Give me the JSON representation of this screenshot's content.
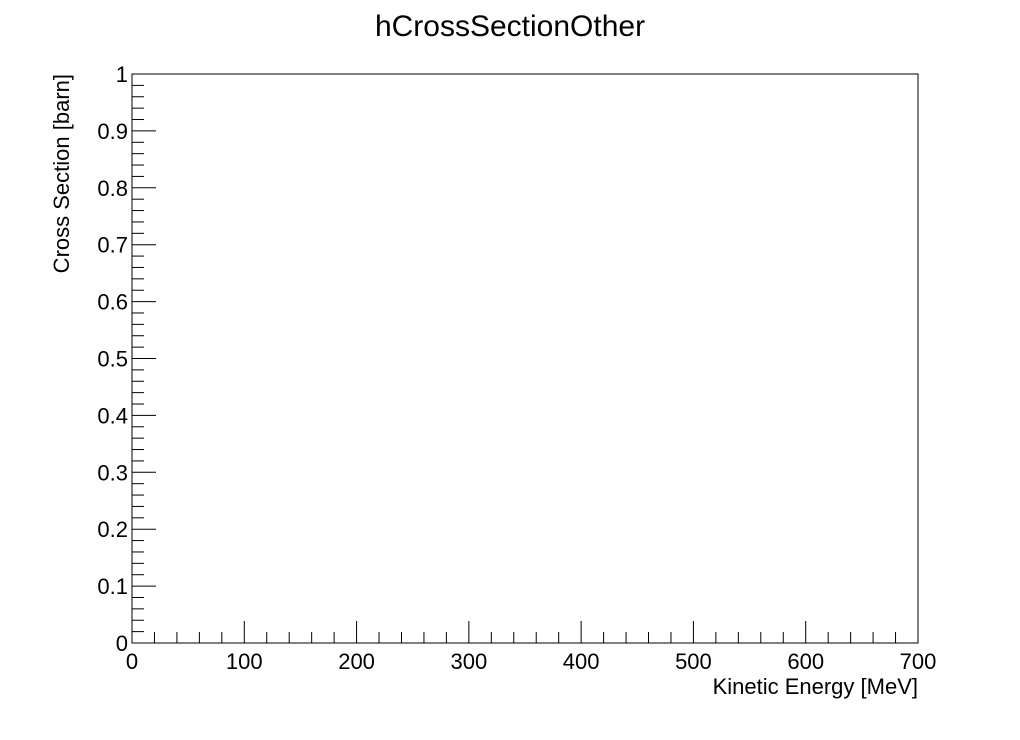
{
  "chart_data": {
    "type": "line",
    "title": "hCrossSectionOther",
    "xlabel": "Kinetic Energy [MeV]",
    "ylabel": "Cross Section [barn]",
    "xlim": [
      0,
      700
    ],
    "ylim": [
      0,
      1
    ],
    "xticks": [
      0,
      100,
      200,
      300,
      400,
      500,
      600,
      700
    ],
    "xtick_labels": [
      "0",
      "100",
      "200",
      "300",
      "400",
      "500",
      "600",
      "700"
    ],
    "yticks": [
      0,
      0.1,
      0.2,
      0.3,
      0.4,
      0.5,
      0.6,
      0.7,
      0.8,
      0.9,
      1
    ],
    "ytick_labels": [
      "0",
      "0.1",
      "0.2",
      "0.3",
      "0.4",
      "0.5",
      "0.6",
      "0.7",
      "0.8",
      "0.9",
      "1"
    ],
    "x_minor_step": 20,
    "y_minor_step": 0.02,
    "grid": false,
    "series": []
  }
}
